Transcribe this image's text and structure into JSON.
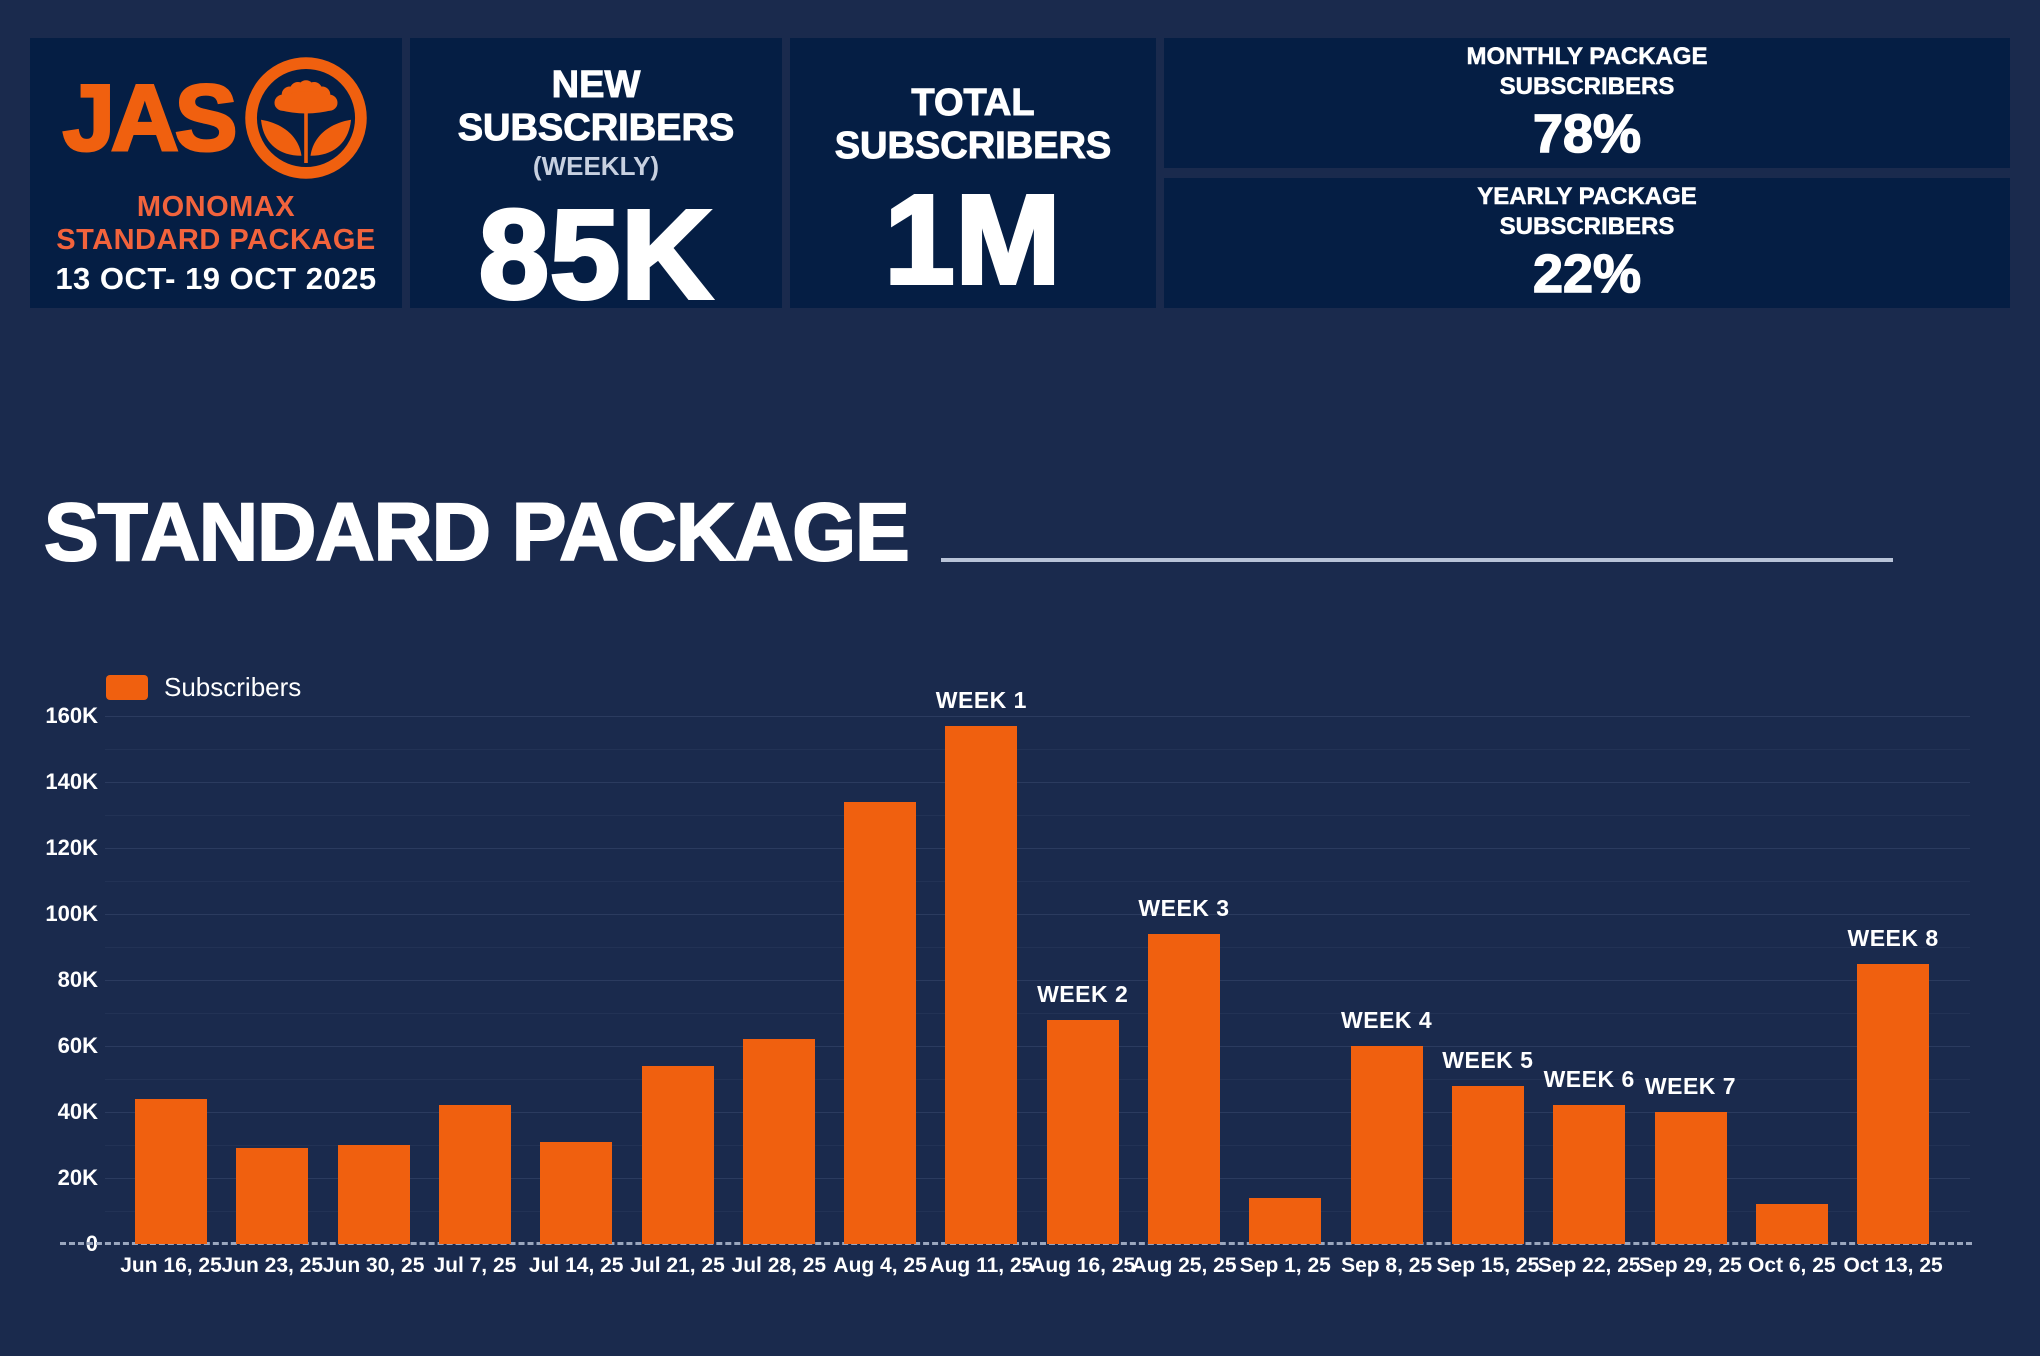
{
  "header": {
    "brand": {
      "logo_text": "JAS",
      "logo_icon": "flower-icon",
      "line1": "MONOMAX",
      "line2": "STANDARD PACKAGE",
      "date_range": "13 OCT- 19 OCT 2025"
    },
    "kpis": {
      "new_subscribers": {
        "title_line1": "NEW",
        "title_line2": "SUBSCRIBERS",
        "subtitle": "(WEEKLY)",
        "value": "85K"
      },
      "total_subscribers": {
        "title_line1": "TOTAL",
        "title_line2": "SUBSCRIBERS",
        "value": "1M"
      },
      "monthly_package": {
        "title_line1": "MONTHLY PACKAGE",
        "title_line2": "SUBSCRIBERS",
        "value": "78%"
      },
      "yearly_package": {
        "title_line1": "YEARLY PACKAGE",
        "title_line2": "SUBSCRIBERS",
        "value": "22%"
      }
    }
  },
  "section": {
    "title": "STANDARD PACKAGE"
  },
  "chart_data": {
    "type": "bar",
    "title": "STANDARD PACKAGE",
    "xlabel": "",
    "ylabel": "",
    "ylim": [
      0,
      160000
    ],
    "grid": true,
    "legend_position": "top-left",
    "legend": [
      {
        "label": "Subscribers",
        "color": "#F0600F"
      }
    ],
    "categories": [
      "Jun 16, 25",
      "Jun 23, 25",
      "Jun 30, 25",
      "Jul 7, 25",
      "Jul 14, 25",
      "Jul 21, 25",
      "Jul 28, 25",
      "Aug 4, 25",
      "Aug 11, 25",
      "Aug 16, 25",
      "Aug 25, 25",
      "Sep 1, 25",
      "Sep 8, 25",
      "Sep 15, 25",
      "Sep 22, 25",
      "Sep 29, 25",
      "Oct 6, 25",
      "Oct 13, 25"
    ],
    "values": [
      44000,
      29000,
      30000,
      42000,
      31000,
      54000,
      62000,
      134000,
      157000,
      68000,
      94000,
      14000,
      60000,
      48000,
      42000,
      40000,
      12000,
      85000
    ],
    "annotations": [
      "",
      "",
      "",
      "",
      "",
      "",
      "",
      "",
      "WEEK 1",
      "WEEK 2",
      "WEEK 3",
      "",
      "WEEK 4",
      "WEEK 5",
      "WEEK 6",
      "WEEK 7",
      "",
      "WEEK 8"
    ],
    "y_ticks": [
      "160K",
      "140K",
      "120K",
      "100K",
      "80K",
      "60K",
      "40K",
      "20K",
      "0"
    ]
  },
  "colors": {
    "page_bg": "#1A2A4D",
    "card_bg": "#051E44",
    "accent_orange": "#F0600F",
    "brand_text_orange": "#F2633C",
    "rule_gray": "#B8C3D8"
  }
}
